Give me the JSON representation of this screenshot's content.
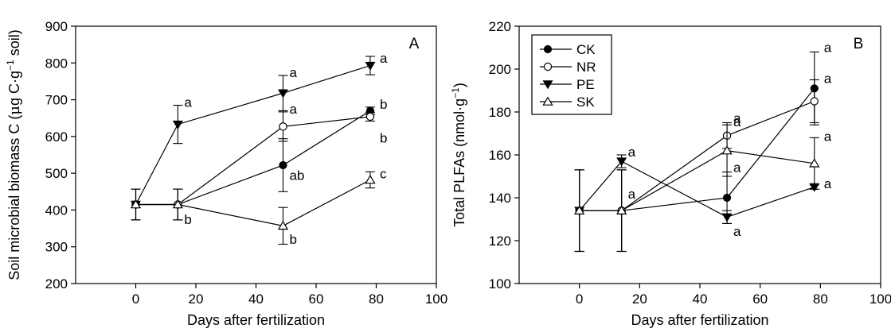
{
  "chart_data": [
    {
      "type": "line",
      "panel_label": "A",
      "ylabel_main": "Soil microbial biomass C (",
      "ylabel_mu": "μ",
      "ylabel_g": "g C·g",
      "ylabel_sup": "−1",
      "ylabel_end": " soil)",
      "xlabel": "Days after fertilization",
      "xlim": [
        -20,
        100
      ],
      "ylim": [
        200,
        900
      ],
      "xticks": [
        "0",
        "20",
        "40",
        "60",
        "80",
        "100"
      ],
      "yticks": [
        "200",
        "300",
        "400",
        "500",
        "600",
        "700",
        "800",
        "900"
      ],
      "x": [
        0,
        14,
        49,
        78
      ],
      "series": [
        {
          "name": "CK",
          "marker": "circle-filled",
          "values": [
            415,
            415,
            522,
            670
          ],
          "err": [
            42,
            42,
            72,
            10
          ],
          "letters": [
            "",
            "",
            "ab",
            "b"
          ]
        },
        {
          "name": "NR",
          "marker": "circle-open",
          "values": [
            415,
            415,
            627,
            654
          ],
          "err": [
            42,
            42,
            40,
            12
          ],
          "letters": [
            "",
            "",
            "a",
            "b"
          ]
        },
        {
          "name": "PE",
          "marker": "triangle-down",
          "values": [
            415,
            633,
            718,
            793
          ],
          "err": [
            42,
            52,
            48,
            25
          ],
          "letters": [
            "",
            "a",
            "a",
            "a"
          ]
        },
        {
          "name": "SK",
          "marker": "triangle-up-open",
          "values": [
            415,
            415,
            357,
            482
          ],
          "err": [
            42,
            42,
            50,
            22
          ],
          "letters": [
            "",
            "b",
            "b",
            "c"
          ]
        }
      ]
    },
    {
      "type": "line",
      "panel_label": "B",
      "ylabel_main": "Total PLFAs (nmol·g",
      "ylabel_sup": "−1",
      "ylabel_end": ")",
      "xlabel": "Days after fertilization",
      "xlim": [
        -20,
        100
      ],
      "ylim": [
        100,
        220
      ],
      "xticks": [
        "0",
        "20",
        "40",
        "60",
        "80",
        "100"
      ],
      "yticks": [
        "100",
        "120",
        "140",
        "160",
        "180",
        "200",
        "220"
      ],
      "x": [
        0,
        14,
        49,
        78
      ],
      "legend_position": "top-left",
      "series": [
        {
          "name": "CK",
          "marker": "circle-filled",
          "values": [
            134,
            134,
            140,
            191
          ],
          "err": [
            19,
            19,
            12,
            17
          ],
          "letters": [
            "",
            "",
            "a",
            "a"
          ]
        },
        {
          "name": "NR",
          "marker": "circle-open",
          "values": [
            134,
            134,
            169,
            185
          ],
          "err": [
            19,
            19,
            6,
            10
          ],
          "letters": [
            "",
            "",
            "a",
            "a"
          ]
        },
        {
          "name": "PE",
          "marker": "triangle-down",
          "values": [
            134,
            157,
            131,
            145
          ],
          "err": [
            19,
            3,
            3,
            1
          ],
          "letters": [
            "",
            "a",
            "a",
            "a"
          ]
        },
        {
          "name": "SK",
          "marker": "triangle-up-open",
          "values": [
            134,
            134,
            162,
            156
          ],
          "err": [
            19,
            19,
            12,
            12
          ],
          "letters": [
            "",
            "a",
            "a",
            "a"
          ]
        }
      ]
    }
  ]
}
